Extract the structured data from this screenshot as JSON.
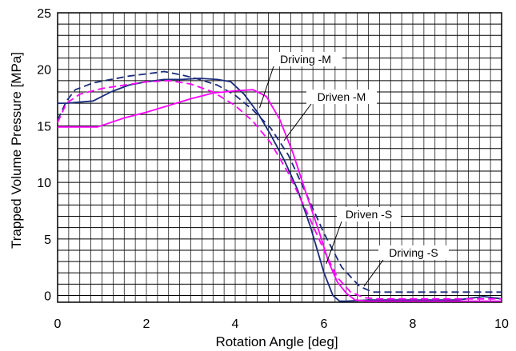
{
  "chart_data": {
    "type": "line",
    "xlabel": "Rotation Angle [deg]",
    "ylabel": "Trapped Volume Pressure [MPa]",
    "xlim": [
      0,
      10
    ],
    "ylim": [
      -0.6,
      25
    ],
    "xticks": [
      0,
      2,
      4,
      6,
      8,
      10
    ],
    "yticks": [
      0,
      5,
      10,
      15,
      20,
      25
    ],
    "grid": true,
    "series": [
      {
        "name": "Driving -M",
        "color": "#1a2b7a",
        "dash": "solid",
        "x": [
          0,
          0.2,
          0.8,
          1.2,
          1.6,
          2.0,
          2.4,
          2.8,
          3.2,
          3.6,
          3.9,
          4.2,
          4.5,
          4.8,
          5.1,
          5.4,
          5.7,
          6.0,
          6.2,
          6.35,
          6.5,
          7.0,
          8.0,
          9.0,
          9.6,
          10.0
        ],
        "y": [
          17.0,
          17.0,
          17.2,
          18.0,
          18.6,
          18.9,
          19.1,
          19.1,
          19.2,
          19.1,
          18.9,
          17.8,
          16.2,
          14.2,
          12.0,
          9.4,
          6.0,
          2.0,
          0.0,
          -0.5,
          -0.5,
          -0.4,
          -0.4,
          -0.4,
          -0.1,
          -0.3
        ]
      },
      {
        "name": "Driving -S",
        "color": "#1a2b7a",
        "dash": "dashed",
        "x": [
          0,
          0.2,
          0.4,
          0.8,
          1.2,
          1.6,
          2.0,
          2.4,
          2.8,
          3.2,
          3.6,
          4.0,
          4.4,
          4.8,
          5.2,
          5.6,
          6.0,
          6.4,
          6.8,
          7.1,
          7.5,
          8.0,
          9.0,
          10.0
        ],
        "y": [
          15.5,
          17.2,
          18.2,
          18.8,
          19.1,
          19.4,
          19.6,
          19.8,
          19.5,
          19.1,
          18.6,
          17.7,
          16.4,
          14.8,
          12.4,
          9.0,
          5.5,
          2.5,
          0.8,
          0.3,
          0.3,
          0.3,
          0.3,
          0.3
        ]
      },
      {
        "name": "Driven -M",
        "color": "#ff00ff",
        "dash": "solid",
        "x": [
          0,
          0.4,
          0.9,
          1.2,
          1.5,
          2.0,
          2.5,
          3.0,
          3.5,
          4.0,
          4.4,
          4.7,
          5.0,
          5.3,
          5.6,
          5.9,
          6.1,
          6.3,
          6.5,
          6.7,
          7.0,
          8.0,
          9.0,
          10.0
        ],
        "y": [
          14.9,
          14.9,
          14.9,
          15.3,
          15.7,
          16.2,
          16.8,
          17.4,
          17.9,
          18.1,
          18.2,
          17.6,
          15.6,
          12.6,
          9.0,
          5.5,
          3.0,
          1.2,
          0.2,
          -0.4,
          -0.5,
          -0.5,
          -0.5,
          -0.5
        ]
      },
      {
        "name": "Driven -S",
        "color": "#ff00ff",
        "dash": "dashed",
        "x": [
          0,
          0.2,
          0.5,
          1.0,
          1.5,
          2.0,
          2.5,
          3.0,
          3.5,
          4.0,
          4.4,
          4.8,
          5.2,
          5.6,
          6.0,
          6.3,
          6.6,
          6.9,
          7.2,
          8.0,
          9.0,
          10.0
        ],
        "y": [
          15.3,
          17.0,
          17.8,
          18.3,
          18.6,
          18.9,
          19.0,
          18.7,
          18.0,
          16.8,
          15.4,
          13.5,
          10.8,
          7.5,
          4.0,
          1.6,
          0.3,
          -0.2,
          -0.3,
          -0.3,
          -0.3,
          -0.3
        ]
      }
    ],
    "annotations": [
      {
        "text": "Driving -M",
        "target_x": 4.55,
        "target_y": 16.6
      },
      {
        "text": "Driven -M",
        "target_x": 5.1,
        "target_y": 13.7
      },
      {
        "text": "Driven -S",
        "target_x": 6.05,
        "target_y": 2.8
      },
      {
        "text": "Driving -S",
        "target_x": 6.9,
        "target_y": 0.8
      }
    ]
  }
}
